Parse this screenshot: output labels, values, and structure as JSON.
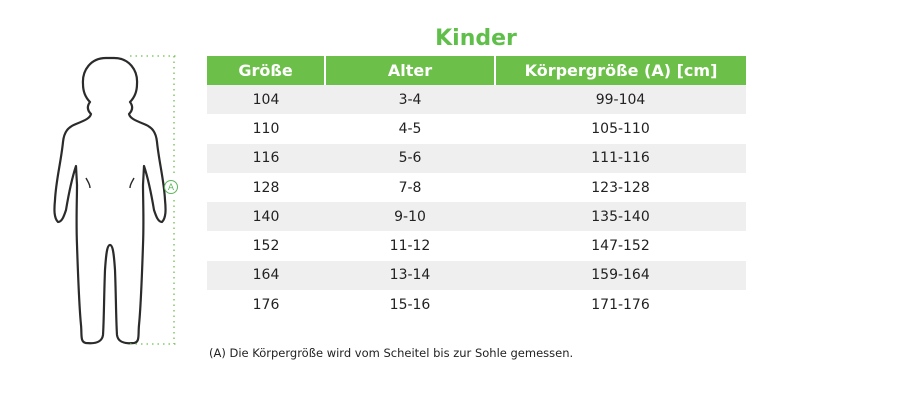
{
  "title": "Kinder",
  "measure_marker": "A",
  "table": {
    "headers": [
      "Größe",
      "Alter",
      "Körpergröße (A) [cm]"
    ],
    "rows": [
      [
        "104",
        "3-4",
        "99-104"
      ],
      [
        "110",
        "4-5",
        "105-110"
      ],
      [
        "116",
        "5-6",
        "111-116"
      ],
      [
        "128",
        "7-8",
        "123-128"
      ],
      [
        "140",
        "9-10",
        "135-140"
      ],
      [
        "152",
        "11-12",
        "147-152"
      ],
      [
        "164",
        "13-14",
        "159-164"
      ],
      [
        "176",
        "15-16",
        "171-176"
      ]
    ]
  },
  "footnote": "(A) Die Körpergröße wird vom Scheitel bis zur Sohle gemessen.",
  "colors": {
    "accent": "#6cc04a",
    "title": "#5fbf4a",
    "row_shade": "#efefef"
  }
}
